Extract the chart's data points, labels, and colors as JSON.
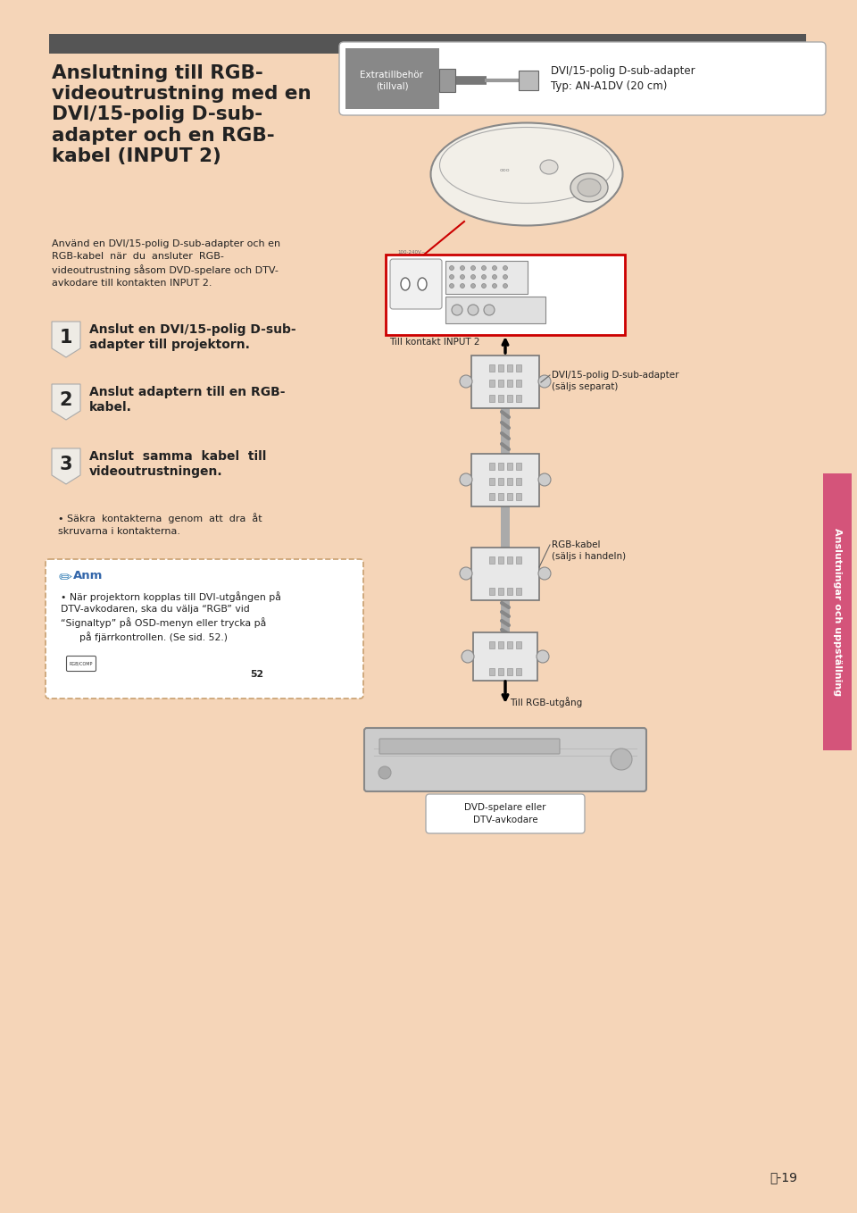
{
  "bg_color": "#F5D5B8",
  "white": "#FFFFFF",
  "dark_bar_color": "#555555",
  "sidebar_color": "#D4547A",
  "red_box_color": "#CC0000",
  "text_dark": "#222222",
  "gray_med": "#999999",
  "gray_light": "#DDDDDD",
  "title_text": "Anslutning till RGB-\nvideoutrustning med en\nDVI/15-polig D-sub-\nadapter och en RGB-\nkabel (INPUT 2)",
  "subtitle": "Använd en DVI/15-polig D-sub-adapter och en\nRGB-kabel  när  du  ansluter  RGB-\nvideoutrustning såsom DVD-spelare och DTV-\navkodare till kontakten INPUT 2.",
  "step1_text": "Anslut en DVI/15-polig D-sub-\nadapter till projektorn.",
  "step2_text": "Anslut adaptern till en RGB-\nkabel.",
  "step3_text": "Anslut  samma  kabel  till\nvideoutrustningen.",
  "bullet1_text": "Säkra  kontakterna  genom  att  dra  åt\nskruvarna i kontakterna.",
  "anm_title": "Anm",
  "anm_body": "När projektorn kopplas till DVI-utgången på\nDTV-avkodaren, ska du välja “RGB” vid\n“Signaltyp” på OSD-menyn eller trycka på\n      på fjärrkontrollen. (Se sid. 52.)",
  "extra_label": "Extratillbehör\n(tillval)",
  "extra_name": "DVI/15-polig D-sub-adapter\nTyp: AN-A1DV (20 cm)",
  "label_input2": "Till kontakt INPUT 2",
  "label_dvi_adapter": "DVI/15-polig D-sub-adapter\n(säljs separat)",
  "label_rgb_kabel": "RGB-kabel\n(säljs i handeln)",
  "label_rgb_utgång": "Till RGB-utgång",
  "label_dvdplayer": "DVD-spelare eller\nDTV-avkodare",
  "sidebar_text": "Anslutningar och uppställning",
  "page_num": "-19"
}
